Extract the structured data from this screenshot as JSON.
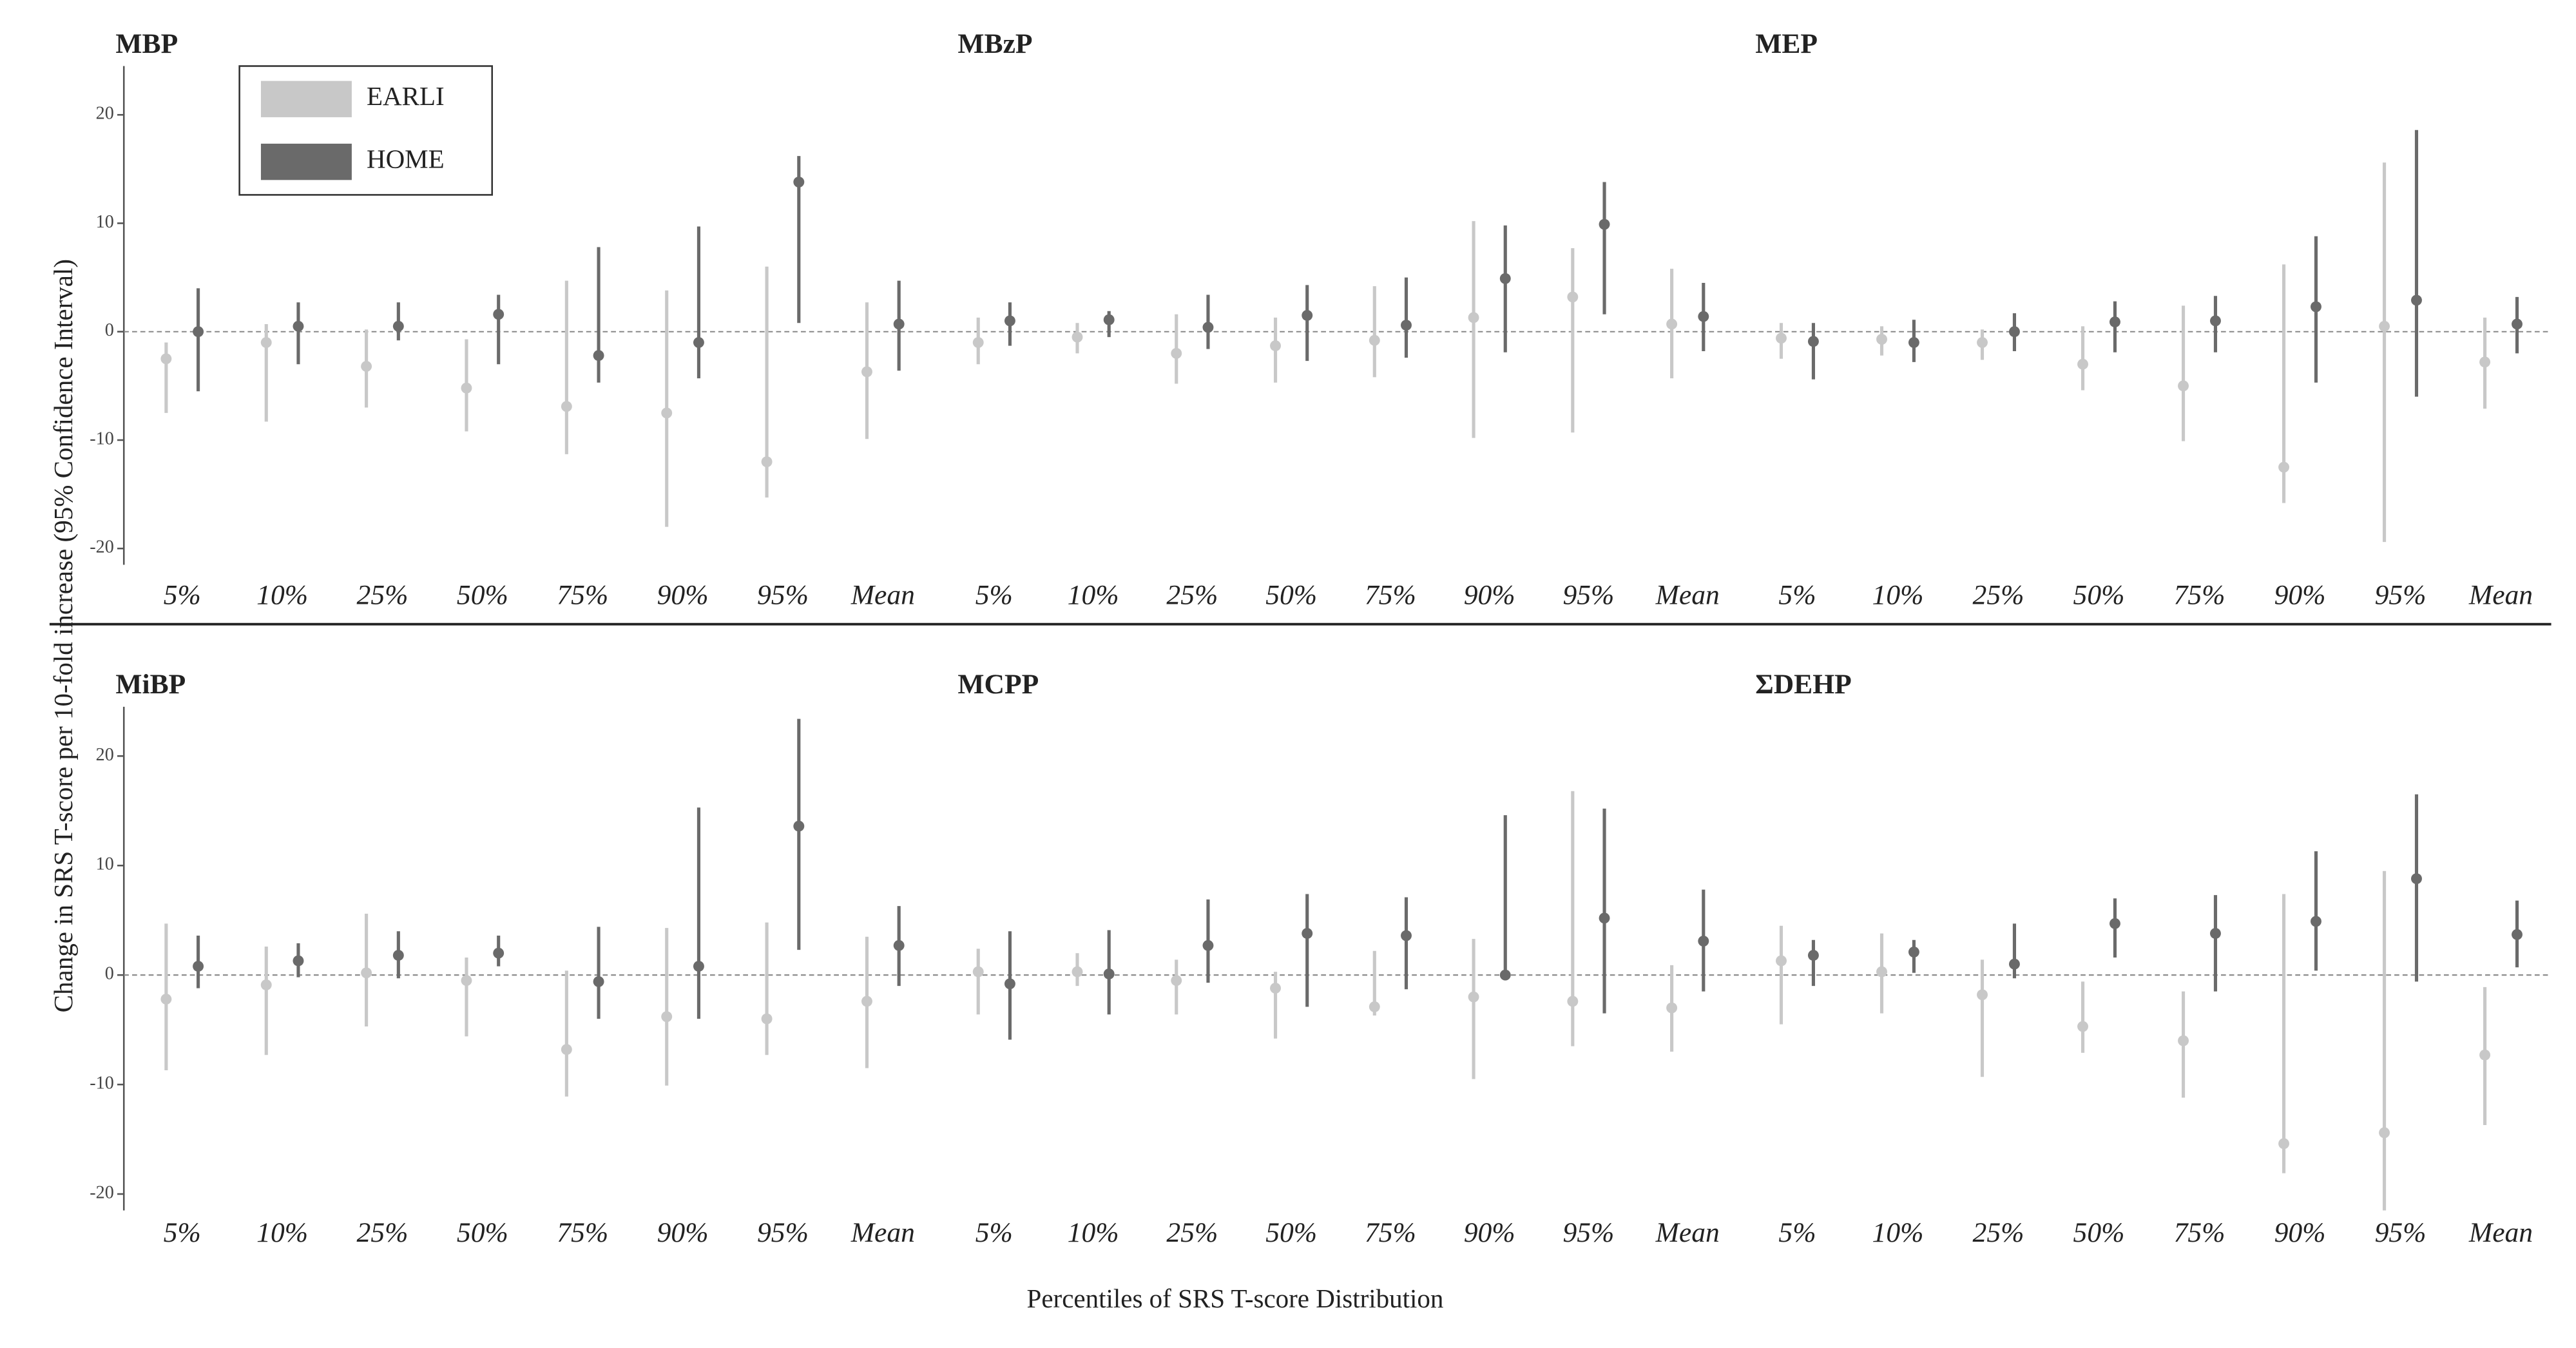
{
  "chart_data": {
    "type": "errorbar",
    "ylabel": "Change in SRS T-score per 10-fold increase (95% Confidence Interval)",
    "xlabel": "Percentiles of SRS T-score Distribution",
    "categories": [
      "5%",
      "10%",
      "25%",
      "50%",
      "75%",
      "90%",
      "95%",
      "Mean"
    ],
    "ylim": [
      -21.5,
      24.5
    ],
    "yticks": [
      -20,
      -10,
      0,
      10,
      20
    ],
    "series": [
      {
        "name": "EARLI",
        "color": "#c8c8c8"
      },
      {
        "name": "HOME",
        "color": "#6a6a6a"
      }
    ],
    "panels": [
      {
        "title": "MBP",
        "series": [
          {
            "values": [
              -2.5,
              -1,
              -3.2,
              -5.2,
              -6.9,
              -7.5,
              -12,
              -3.7
            ],
            "lower": [
              -7.5,
              -8.3,
              -7,
              -9.2,
              -11.3,
              -18,
              -15.3,
              -9.9
            ],
            "upper": [
              -1,
              0.7,
              0.2,
              -0.7,
              4.7,
              3.8,
              6,
              2.7
            ]
          },
          {
            "values": [
              0,
              0.5,
              0.5,
              1.6,
              -2.2,
              -1,
              13.8,
              0.7
            ],
            "lower": [
              -5.5,
              -3,
              -0.8,
              -3,
              -4.7,
              -4.3,
              0.8,
              -3.6
            ],
            "upper": [
              4,
              2.7,
              2.7,
              3.4,
              7.8,
              9.7,
              16.2,
              4.7
            ]
          }
        ]
      },
      {
        "title": "MBzP",
        "series": [
          {
            "values": [
              -1,
              -0.5,
              -2,
              -1.3,
              -0.8,
              1.3,
              3.2,
              0.7
            ],
            "lower": [
              -3,
              -2,
              -4.8,
              -4.7,
              -4.2,
              -9.8,
              -9.3,
              -4.3
            ],
            "upper": [
              1.3,
              0.8,
              1.6,
              1.3,
              4.2,
              10.2,
              7.7,
              5.8
            ]
          },
          {
            "values": [
              1,
              1.1,
              0.4,
              1.5,
              0.6,
              4.9,
              9.9,
              1.4
            ],
            "lower": [
              -1.3,
              -0.5,
              -1.6,
              -2.7,
              -2.4,
              -1.9,
              1.6,
              -1.8
            ],
            "upper": [
              2.7,
              1.9,
              3.4,
              4.3,
              5,
              9.8,
              13.8,
              4.5
            ]
          }
        ]
      },
      {
        "title": "MEP",
        "series": [
          {
            "values": [
              -0.6,
              -0.7,
              -1,
              -3,
              -5,
              -12.5,
              0.5,
              -2.8
            ],
            "lower": [
              -2.5,
              -2.2,
              -2.6,
              -5.4,
              -10.1,
              -15.8,
              -19.4,
              -7.1
            ],
            "upper": [
              0.8,
              0.5,
              0.2,
              0.5,
              2.4,
              6.2,
              15.6,
              1.3
            ]
          },
          {
            "values": [
              -0.9,
              -1,
              0,
              0.9,
              1,
              2.3,
              2.9,
              0.7
            ],
            "lower": [
              -4.4,
              -2.8,
              -1.8,
              -1.9,
              -1.9,
              -4.7,
              -6,
              -2
            ],
            "upper": [
              0.8,
              1.1,
              1.7,
              2.8,
              3.3,
              8.8,
              18.6,
              3.2
            ]
          }
        ]
      },
      {
        "title": "MiBP",
        "series": [
          {
            "values": [
              -2.2,
              -0.9,
              0.2,
              -0.5,
              -6.8,
              -3.8,
              -4,
              -2.4
            ],
            "lower": [
              -8.7,
              -7.3,
              -4.7,
              -5.6,
              -11.1,
              -10.1,
              -7.3,
              -8.5
            ],
            "upper": [
              4.7,
              2.6,
              5.6,
              1.6,
              0.4,
              4.3,
              4.8,
              3.5
            ]
          },
          {
            "values": [
              0.8,
              1.3,
              1.8,
              2,
              -0.6,
              0.8,
              13.6,
              2.7
            ],
            "lower": [
              -1.2,
              -0.2,
              -0.3,
              0.8,
              -4,
              -4,
              2.3,
              -1
            ],
            "upper": [
              3.6,
              2.9,
              4,
              3.6,
              4.4,
              15.3,
              23.4,
              6.3
            ]
          }
        ]
      },
      {
        "title": "MCPP",
        "series": [
          {
            "values": [
              0.3,
              0.3,
              -0.5,
              -1.2,
              -2.9,
              -2,
              -2.4,
              -3
            ],
            "lower": [
              -3.6,
              -1,
              -3.6,
              -5.8,
              -3.7,
              -9.5,
              -6.5,
              -7
            ],
            "upper": [
              2.4,
              2,
              1.4,
              0.3,
              2.2,
              3.3,
              16.8,
              0.9
            ]
          },
          {
            "values": [
              -0.8,
              0.1,
              2.7,
              3.8,
              3.6,
              0,
              5.2,
              3.1
            ],
            "lower": [
              -5.9,
              -3.6,
              -0.7,
              -2.9,
              -1.3,
              -0.3,
              -3.5,
              -1.5
            ],
            "upper": [
              4,
              4.1,
              6.9,
              7.4,
              7.1,
              14.6,
              15.2,
              7.8
            ]
          }
        ]
      },
      {
        "title": "ΣDEHP",
        "series": [
          {
            "values": [
              1.3,
              0.3,
              -1.8,
              -4.7,
              -6,
              -15.4,
              -14.4,
              -7.3
            ],
            "lower": [
              -4.5,
              -3.5,
              -9.3,
              -7.1,
              -11.2,
              -18.1,
              -21.5,
              -13.7
            ],
            "upper": [
              4.5,
              3.8,
              1.4,
              -0.6,
              -1.5,
              7.4,
              9.5,
              -1.1
            ]
          },
          {
            "values": [
              1.8,
              2.1,
              1,
              4.7,
              3.8,
              4.9,
              8.8,
              3.7
            ],
            "lower": [
              -1,
              0.2,
              -0.3,
              1.6,
              -1.5,
              0.4,
              -0.6,
              0.7
            ],
            "upper": [
              3.2,
              3.2,
              4.7,
              7,
              7.3,
              11.3,
              16.5,
              6.8
            ]
          }
        ]
      }
    ]
  }
}
